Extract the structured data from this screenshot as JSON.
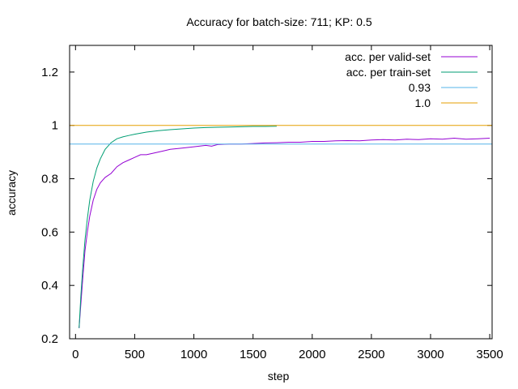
{
  "chart_data": {
    "type": "line",
    "title": "Accuracy for batch-size: 711; KP: 0.5",
    "xlabel": "step",
    "ylabel": "accuracy",
    "xlim": [
      -50,
      3520
    ],
    "ylim": [
      0.2,
      1.3
    ],
    "xticks": [
      0,
      500,
      1000,
      1500,
      2000,
      2500,
      3000,
      3500
    ],
    "yticks": [
      0.2,
      0.4,
      0.6,
      0.8,
      1,
      1.2
    ],
    "grid": false,
    "legend_position": "top-right",
    "series": [
      {
        "name": "acc. per valid-set",
        "color": "#9400d3",
        "kind": "line",
        "x": [
          30,
          45,
          60,
          80,
          100,
          120,
          150,
          180,
          210,
          250,
          300,
          350,
          400,
          450,
          500,
          550,
          600,
          650,
          700,
          750,
          800,
          900,
          1000,
          1100,
          1150,
          1200,
          1300,
          1400,
          1500,
          1600,
          1700,
          1800,
          1900,
          2000,
          2100,
          2200,
          2300,
          2400,
          2500,
          2600,
          2700,
          2800,
          2900,
          3000,
          3100,
          3200,
          3300,
          3400,
          3500
        ],
        "y": [
          0.24,
          0.33,
          0.42,
          0.53,
          0.6,
          0.66,
          0.72,
          0.76,
          0.785,
          0.805,
          0.82,
          0.845,
          0.86,
          0.87,
          0.88,
          0.89,
          0.89,
          0.895,
          0.9,
          0.905,
          0.91,
          0.915,
          0.92,
          0.925,
          0.922,
          0.928,
          0.93,
          0.93,
          0.932,
          0.934,
          0.935,
          0.937,
          0.937,
          0.94,
          0.94,
          0.942,
          0.943,
          0.942,
          0.945,
          0.947,
          0.945,
          0.948,
          0.947,
          0.95,
          0.948,
          0.952,
          0.948,
          0.95,
          0.952
        ]
      },
      {
        "name": "acc. per train-set",
        "color": "#009e73",
        "kind": "line",
        "x": [
          30,
          45,
          60,
          80,
          100,
          120,
          150,
          180,
          210,
          250,
          300,
          350,
          400,
          450,
          500,
          600,
          700,
          800,
          900,
          1000,
          1100,
          1200,
          1300,
          1400,
          1500,
          1600,
          1700
        ],
        "y": [
          0.24,
          0.36,
          0.46,
          0.57,
          0.65,
          0.72,
          0.79,
          0.84,
          0.875,
          0.91,
          0.935,
          0.95,
          0.957,
          0.962,
          0.967,
          0.975,
          0.98,
          0.984,
          0.987,
          0.99,
          0.992,
          0.993,
          0.994,
          0.995,
          0.996,
          0.996,
          0.997
        ]
      },
      {
        "name": "0.93",
        "color": "#56b4e9",
        "kind": "hline",
        "value": 0.93
      },
      {
        "name": "1.0",
        "color": "#e69f00",
        "kind": "hline",
        "value": 1.0
      }
    ]
  }
}
